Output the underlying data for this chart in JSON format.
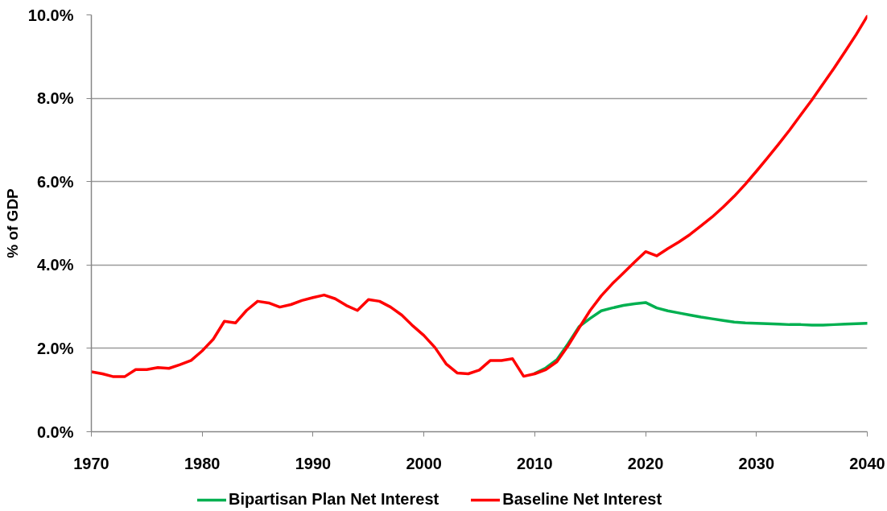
{
  "chart_data": {
    "type": "line",
    "ylabel": "% of GDP",
    "xlim": [
      1970,
      2040
    ],
    "xticks": [
      1970,
      1980,
      1990,
      2000,
      2010,
      2020,
      2030,
      2040
    ],
    "ylim": [
      0,
      10
    ],
    "yticks": [
      {
        "value": 0,
        "label": "0.0%"
      },
      {
        "value": 2,
        "label": "2.0%"
      },
      {
        "value": 4,
        "label": "4.0%"
      },
      {
        "value": 6,
        "label": "6.0%"
      },
      {
        "value": 8,
        "label": "8.0%"
      },
      {
        "value": 10,
        "label": "10.0%"
      }
    ],
    "grid": "y",
    "legend": "bottom",
    "series": [
      {
        "name": "Bipartisan Plan Net Interest",
        "color": "#00b050",
        "x": [
          2010,
          2011,
          2012,
          2013,
          2014,
          2015,
          2016,
          2017,
          2018,
          2019,
          2020,
          2021,
          2022,
          2023,
          2024,
          2025,
          2026,
          2027,
          2028,
          2029,
          2030,
          2031,
          2032,
          2033,
          2034,
          2035,
          2036,
          2037,
          2038,
          2039,
          2040
        ],
        "values": [
          1.4,
          1.53,
          1.73,
          2.11,
          2.52,
          2.72,
          2.9,
          2.97,
          3.03,
          3.07,
          3.1,
          2.97,
          2.9,
          2.85,
          2.8,
          2.75,
          2.71,
          2.67,
          2.63,
          2.61,
          2.6,
          2.59,
          2.58,
          2.57,
          2.57,
          2.56,
          2.56,
          2.57,
          2.58,
          2.59,
          2.6
        ]
      },
      {
        "name": "Baseline Net Interest",
        "color": "#ff0000",
        "x": [
          1970,
          1971,
          1972,
          1973,
          1974,
          1975,
          1976,
          1977,
          1978,
          1979,
          1980,
          1981,
          1982,
          1983,
          1984,
          1985,
          1986,
          1987,
          1988,
          1989,
          1990,
          1991,
          1992,
          1993,
          1994,
          1995,
          1996,
          1997,
          1998,
          1999,
          2000,
          2001,
          2002,
          2003,
          2004,
          2005,
          2006,
          2007,
          2008,
          2009,
          2010,
          2011,
          2012,
          2013,
          2014,
          2015,
          2016,
          2017,
          2018,
          2019,
          2020,
          2021,
          2022,
          2023,
          2024,
          2025,
          2026,
          2027,
          2028,
          2029,
          2030,
          2031,
          2032,
          2033,
          2034,
          2035,
          2036,
          2037,
          2038,
          2039,
          2040
        ],
        "values": [
          1.44,
          1.39,
          1.32,
          1.32,
          1.49,
          1.49,
          1.54,
          1.52,
          1.61,
          1.71,
          1.94,
          2.22,
          2.65,
          2.61,
          2.91,
          3.13,
          3.09,
          2.99,
          3.05,
          3.15,
          3.22,
          3.28,
          3.19,
          3.03,
          2.91,
          3.17,
          3.13,
          2.99,
          2.8,
          2.54,
          2.31,
          2.02,
          1.63,
          1.41,
          1.39,
          1.48,
          1.71,
          1.71,
          1.75,
          1.33,
          1.39,
          1.49,
          1.68,
          2.06,
          2.49,
          2.91,
          3.26,
          3.55,
          3.81,
          4.07,
          4.32,
          4.22,
          4.39,
          4.55,
          4.73,
          4.94,
          5.15,
          5.39,
          5.65,
          5.94,
          6.25,
          6.57,
          6.9,
          7.24,
          7.6,
          7.96,
          8.34,
          8.72,
          9.12,
          9.53,
          9.97
        ]
      }
    ]
  }
}
